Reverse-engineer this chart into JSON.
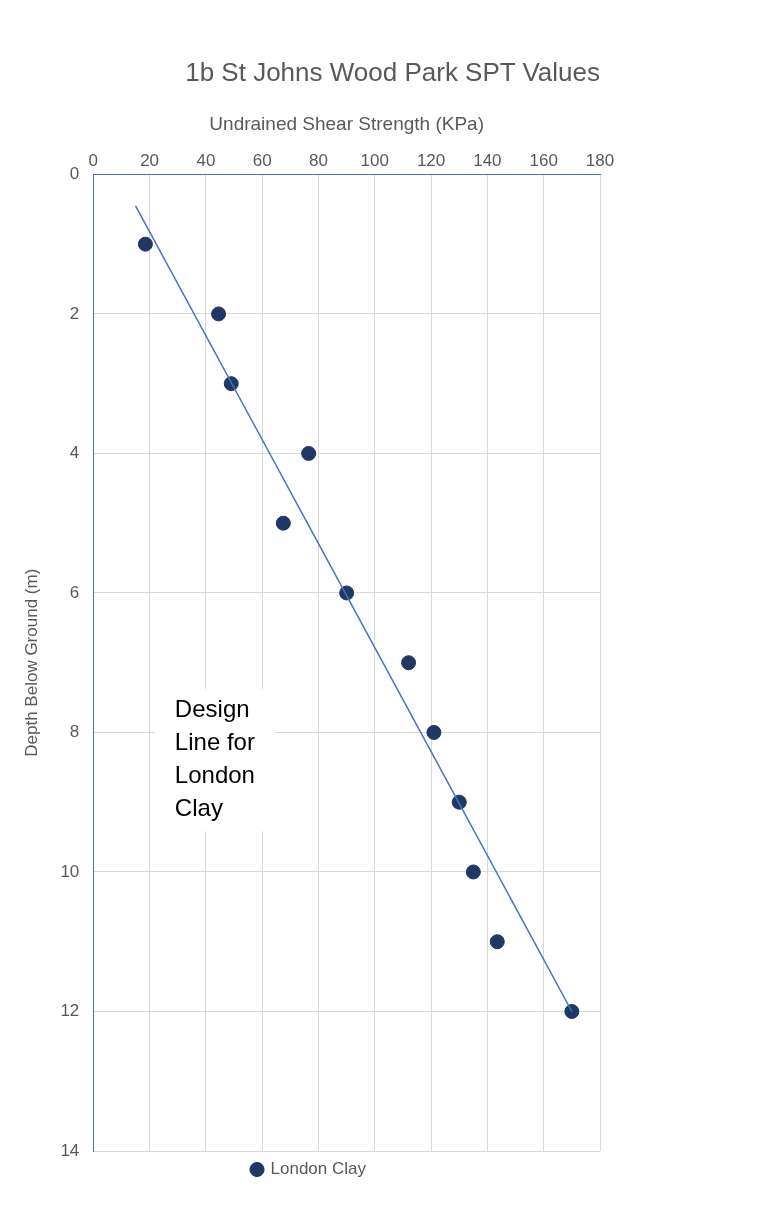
{
  "chart_data": {
    "type": "scatter",
    "title": "1b St Johns Wood Park SPT Values",
    "xlabel": "Undrained Shear Strength (KPa)",
    "ylabel": "Depth Below Ground (m)",
    "xlim": [
      0,
      180
    ],
    "xticks": [
      0,
      20,
      40,
      60,
      80,
      100,
      120,
      140,
      160,
      180
    ],
    "ylim": [
      14,
      0
    ],
    "yticks": [
      0,
      2,
      4,
      6,
      8,
      10,
      12,
      14
    ],
    "grid": true,
    "legend": "bottom",
    "marker": "circle",
    "series": [
      {
        "name": "London Clay",
        "color": "#1f3864",
        "x": [
          18.5,
          44.5,
          49,
          76.5,
          67.5,
          90,
          112,
          121,
          130,
          135,
          143.5,
          170
        ],
        "values": [
          1,
          2,
          3,
          4,
          5,
          6,
          7,
          8,
          9,
          10,
          11,
          12
        ]
      },
      {
        "type": "line",
        "color": "#4472c4",
        "marker": "none",
        "x": [
          15,
          170
        ],
        "values": [
          0.45,
          12
        ]
      }
    ],
    "annotations": [
      "Design Line for London Clay"
    ]
  }
}
